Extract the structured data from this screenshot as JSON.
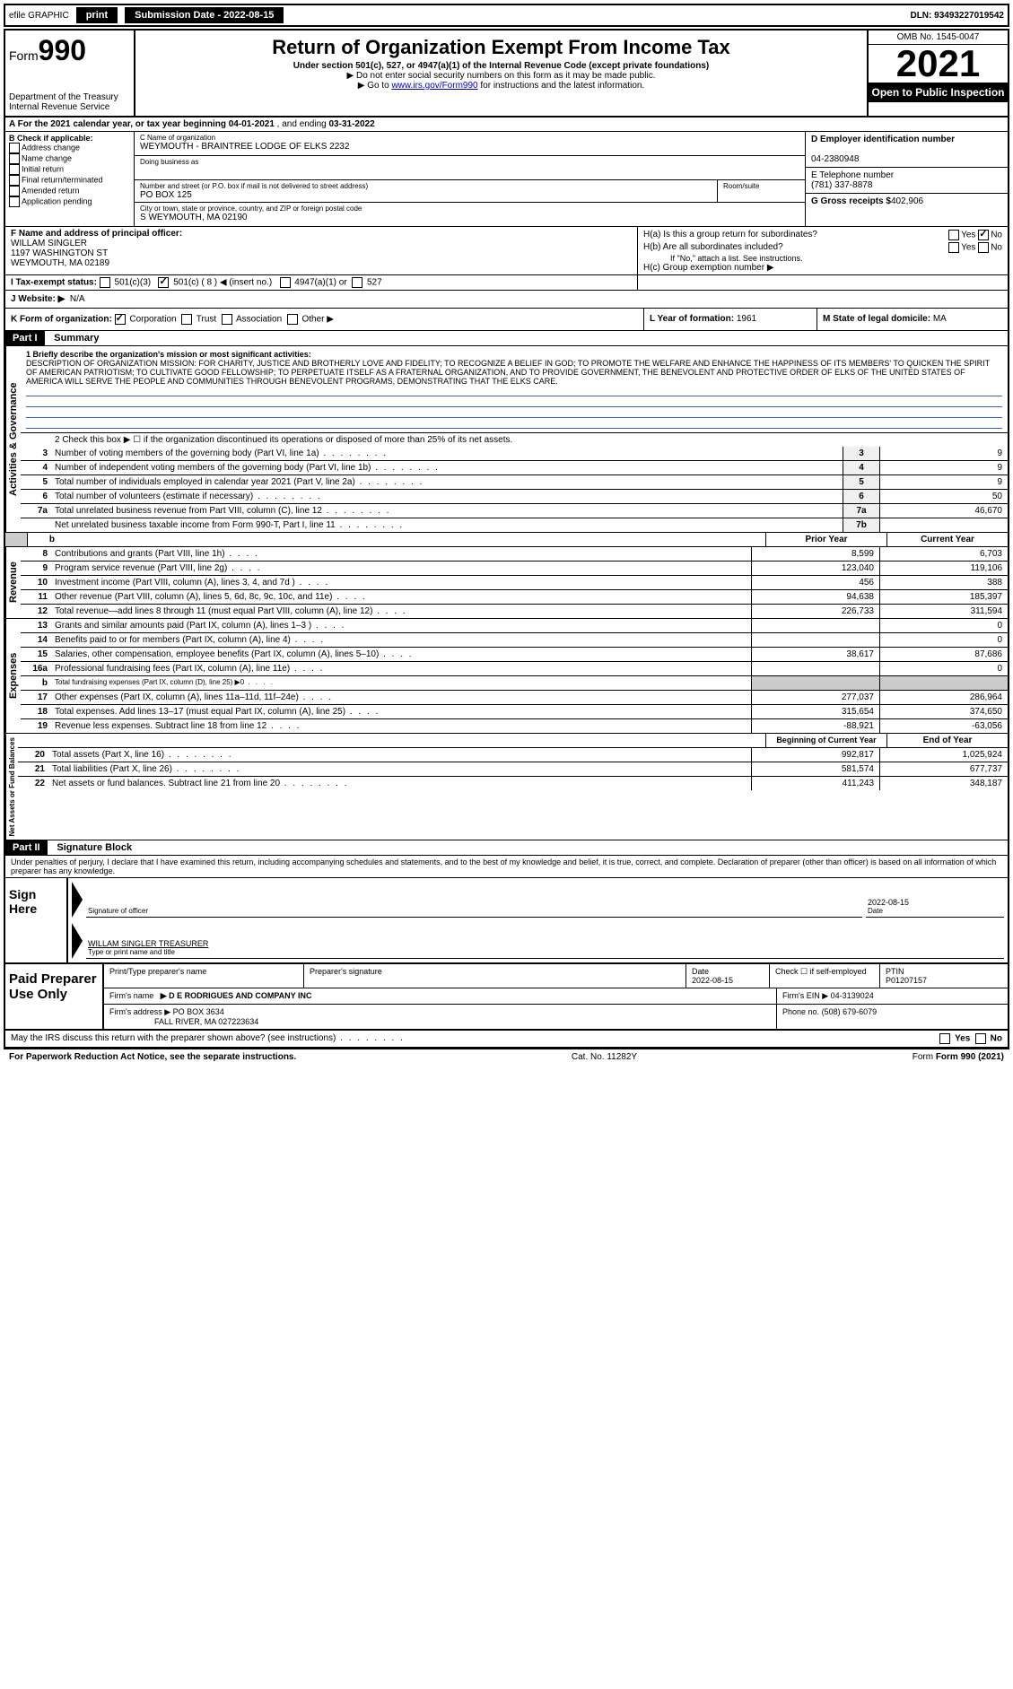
{
  "top": {
    "efile": "efile GRAPHIC",
    "print": "print",
    "sub_date_label": "Submission Date - 2022-08-15",
    "dln": "DLN: 93493227019542"
  },
  "header": {
    "form_prefix": "Form",
    "form_num": "990",
    "dept": "Department of the Treasury",
    "irs": "Internal Revenue Service",
    "title": "Return of Organization Exempt From Income Tax",
    "sub1": "Under section 501(c), 527, or 4947(a)(1) of the Internal Revenue Code (except private foundations)",
    "sub2": "▶ Do not enter social security numbers on this form as it may be made public.",
    "sub3_pre": "▶ Go to ",
    "sub3_link": "www.irs.gov/Form990",
    "sub3_post": " for instructions and the latest information.",
    "omb": "OMB No. 1545-0047",
    "year": "2021",
    "open": "Open to Public Inspection"
  },
  "row_a": {
    "prefix": "A  For the 2021 calendar year, or tax year beginning ",
    "begin": "04-01-2021",
    "mid": " , and ending ",
    "end": "03-31-2022"
  },
  "col_b": {
    "title": "B Check if applicable:",
    "items": [
      "Address change",
      "Name change",
      "Initial return",
      "Final return/terminated",
      "Amended return",
      "Application pending"
    ]
  },
  "col_c": {
    "name_label": "C Name of organization",
    "name": "WEYMOUTH - BRAINTREE LODGE OF ELKS 2232",
    "dba_label": "Doing business as",
    "addr_label": "Number and street (or P.O. box if mail is not delivered to street address)",
    "addr": "PO BOX 125",
    "room_label": "Room/suite",
    "city_label": "City or town, state or province, country, and ZIP or foreign postal code",
    "city": "S WEYMOUTH, MA  02190"
  },
  "col_d": {
    "ein_label": "D Employer identification number",
    "ein": "04-2380948",
    "phone_label": "E Telephone number",
    "phone": "(781) 337-8878",
    "gross_label": "G Gross receipts $",
    "gross": "402,906"
  },
  "col_f": {
    "label": "F  Name and address of principal officer:",
    "name": "WILLAM SINGLER",
    "addr1": "1197 WASHINGTON ST",
    "addr2": "WEYMOUTH, MA  02189"
  },
  "col_h": {
    "ha": "H(a)  Is this a group return for subordinates?",
    "hb": "H(b)  Are all subordinates included?",
    "hb_note": "If \"No,\" attach a list. See instructions.",
    "hc": "H(c)  Group exemption number ▶",
    "yes": "Yes",
    "no": "No"
  },
  "row_i": {
    "label": "I   Tax-exempt status:",
    "opt1": "501(c)(3)",
    "opt2": "501(c) ( 8 ) ◀ (insert no.)",
    "opt3": "4947(a)(1) or",
    "opt4": "527"
  },
  "row_j": {
    "label": "J   Website: ▶",
    "val": "N/A"
  },
  "row_k": {
    "label": "K Form of organization:",
    "opts": [
      "Corporation",
      "Trust",
      "Association",
      "Other ▶"
    ],
    "l_label": "L Year of formation:",
    "l_val": "1961",
    "m_label": "M State of legal domicile:",
    "m_val": "MA"
  },
  "part1": {
    "header": "Part I",
    "title": "Summary"
  },
  "mission": {
    "label": "1   Briefly describe the organization's mission or most significant activities:",
    "text": "DESCRIPTION OF ORGANIZATION MISSION: FOR CHARITY, JUSTICE AND BROTHERLY LOVE AND FIDELITY; TO RECOGNIZE A BELIEF IN GOD; TO PROMOTE THE WELFARE AND ENHANCE THE HAPPINESS OF ITS MEMBERS' TO QUICKEN THE SPIRIT OF AMERICAN PATRIOTISM; TO CULTIVATE GOOD FELLOWSHIP; TO PERPETUATE ITSELF AS A FRATERNAL ORGANIZATION, AND TO PROVIDE GOVERNMENT, THE BENEVOLENT AND PROTECTIVE ORDER OF ELKS OF THE UNITED STATES OF AMERICA WILL SERVE THE PEOPLE AND COMMUNITIES THROUGH BENEVOLENT PROGRAMS, DEMONSTRATING THAT THE ELKS CARE."
  },
  "governance": {
    "check2": "2   Check this box ▶ ☐ if the organization discontinued its operations or disposed of more than 25% of its net assets.",
    "rows": [
      {
        "n": "3",
        "label": "Number of voting members of the governing body (Part VI, line 1a)",
        "box": "3",
        "val": "9"
      },
      {
        "n": "4",
        "label": "Number of independent voting members of the governing body (Part VI, line 1b)",
        "box": "4",
        "val": "9"
      },
      {
        "n": "5",
        "label": "Total number of individuals employed in calendar year 2021 (Part V, line 2a)",
        "box": "5",
        "val": "9"
      },
      {
        "n": "6",
        "label": "Total number of volunteers (estimate if necessary)",
        "box": "6",
        "val": "50"
      },
      {
        "n": "7a",
        "label": "Total unrelated business revenue from Part VIII, column (C), line 12",
        "box": "7a",
        "val": "46,670"
      },
      {
        "n": "",
        "label": "Net unrelated business taxable income from Form 990-T, Part I, line 11",
        "box": "7b",
        "val": ""
      }
    ]
  },
  "col_headers": {
    "prior": "Prior Year",
    "current": "Current Year"
  },
  "revenue": [
    {
      "n": "8",
      "label": "Contributions and grants (Part VIII, line 1h)",
      "p": "8,599",
      "c": "6,703"
    },
    {
      "n": "9",
      "label": "Program service revenue (Part VIII, line 2g)",
      "p": "123,040",
      "c": "119,106"
    },
    {
      "n": "10",
      "label": "Investment income (Part VIII, column (A), lines 3, 4, and 7d )",
      "p": "456",
      "c": "388"
    },
    {
      "n": "11",
      "label": "Other revenue (Part VIII, column (A), lines 5, 6d, 8c, 9c, 10c, and 11e)",
      "p": "94,638",
      "c": "185,397"
    },
    {
      "n": "12",
      "label": "Total revenue—add lines 8 through 11 (must equal Part VIII, column (A), line 12)",
      "p": "226,733",
      "c": "311,594"
    }
  ],
  "expenses": [
    {
      "n": "13",
      "label": "Grants and similar amounts paid (Part IX, column (A), lines 1–3 )",
      "p": "",
      "c": "0"
    },
    {
      "n": "14",
      "label": "Benefits paid to or for members (Part IX, column (A), line 4)",
      "p": "",
      "c": "0"
    },
    {
      "n": "15",
      "label": "Salaries, other compensation, employee benefits (Part IX, column (A), lines 5–10)",
      "p": "38,617",
      "c": "87,686"
    },
    {
      "n": "16a",
      "label": "Professional fundraising fees (Part IX, column (A), line 11e)",
      "p": "",
      "c": "0"
    },
    {
      "n": "b",
      "label": "Total fundraising expenses (Part IX, column (D), line 25) ▶0",
      "p": "",
      "c": "",
      "grey": true
    },
    {
      "n": "17",
      "label": "Other expenses (Part IX, column (A), lines 11a–11d, 11f–24e)",
      "p": "277,037",
      "c": "286,964"
    },
    {
      "n": "18",
      "label": "Total expenses. Add lines 13–17 (must equal Part IX, column (A), line 25)",
      "p": "315,654",
      "c": "374,650"
    },
    {
      "n": "19",
      "label": "Revenue less expenses. Subtract line 18 from line 12",
      "p": "-88,921",
      "c": "-63,056"
    }
  ],
  "net_headers": {
    "begin": "Beginning of Current Year",
    "end": "End of Year"
  },
  "netassets": [
    {
      "n": "20",
      "label": "Total assets (Part X, line 16)",
      "p": "992,817",
      "c": "1,025,924"
    },
    {
      "n": "21",
      "label": "Total liabilities (Part X, line 26)",
      "p": "581,574",
      "c": "677,737"
    },
    {
      "n": "22",
      "label": "Net assets or fund balances. Subtract line 21 from line 20",
      "p": "411,243",
      "c": "348,187"
    }
  ],
  "part2": {
    "header": "Part II",
    "title": "Signature Block"
  },
  "penalties": "Under penalties of perjury, I declare that I have examined this return, including accompanying schedules and statements, and to the best of my knowledge and belief, it is true, correct, and complete. Declaration of preparer (other than officer) is based on all information of which preparer has any knowledge.",
  "sign": {
    "label": "Sign Here",
    "sig_label": "Signature of officer",
    "date": "2022-08-15",
    "date_label": "Date",
    "name": "WILLAM SINGLER  TREASURER",
    "name_label": "Type or print name and title"
  },
  "paid": {
    "label": "Paid Preparer Use Only",
    "r1": {
      "c1": "Print/Type preparer's name",
      "c2": "Preparer's signature",
      "c3l": "Date",
      "c3v": "2022-08-15",
      "c4l": "Check ☐ if self-employed",
      "c5l": "PTIN",
      "c5v": "P01207157"
    },
    "r2": {
      "c1l": "Firm's name",
      "c1v": "▶ D E RODRIGUES AND COMPANY INC",
      "c2l": "Firm's EIN ▶",
      "c2v": "04-3139024"
    },
    "r3": {
      "c1l": "Firm's address ▶",
      "c1v": "PO BOX 3634",
      "c1v2": "FALL RIVER, MA  027223634",
      "c2l": "Phone no.",
      "c2v": "(508) 679-6079"
    }
  },
  "footer": {
    "q": "May the IRS discuss this return with the preparer shown above? (see instructions)",
    "yes": "Yes",
    "no": "No",
    "pra": "For Paperwork Reduction Act Notice, see the separate instructions.",
    "cat": "Cat. No. 11282Y",
    "form": "Form 990 (2021)"
  },
  "vlabels": {
    "gov": "Activities & Governance",
    "rev": "Revenue",
    "exp": "Expenses",
    "net": "Net Assets or Fund Balances"
  }
}
